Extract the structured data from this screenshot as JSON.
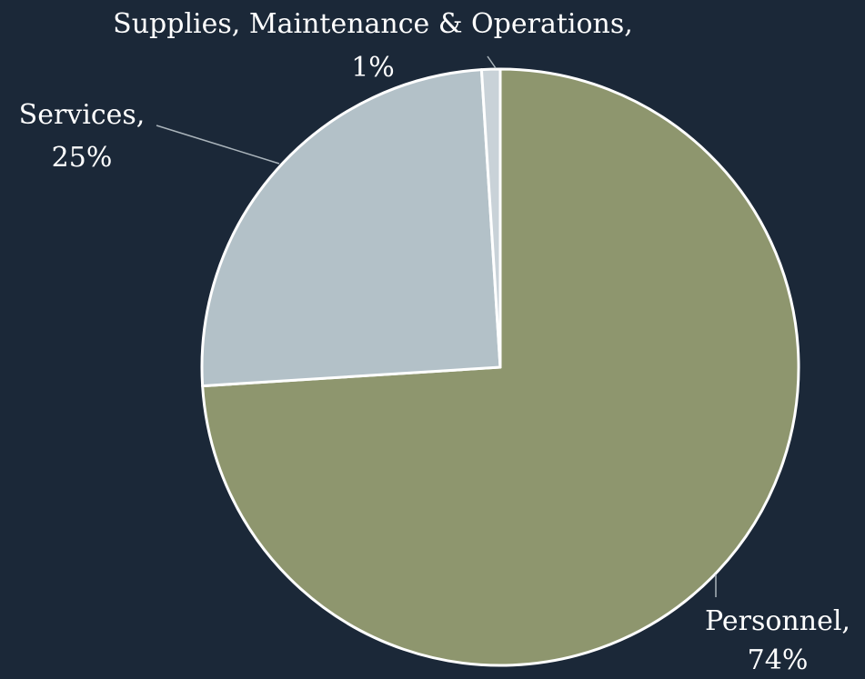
{
  "chart_data": {
    "type": "pie",
    "categories": [
      "Personnel,",
      "Services,",
      "Supplies, Maintenance & Operations,"
    ],
    "values": [
      74,
      25,
      1
    ],
    "value_labels": [
      "74%",
      "25%",
      "1%"
    ],
    "colors": [
      "#8e966e",
      "#b3c1c8",
      "#c9d2d8"
    ]
  }
}
